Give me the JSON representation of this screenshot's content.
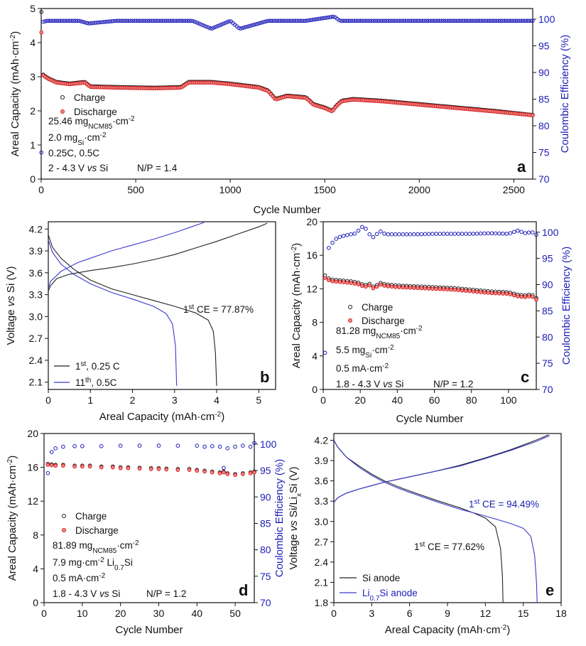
{
  "colors": {
    "charge": "#1a1a1a",
    "discharge": "#d42020",
    "ce": "#1c1cb8",
    "curve_black": "#222222",
    "curve_blue": "#3a3acc"
  },
  "chart_data": [
    {
      "id": "a",
      "type": "scatter",
      "panel_letter": "a",
      "xlabel": "Cycle Number",
      "ylabel": "Areal Capacity (mAh·cm⁻²)",
      "ylabel_right": "Coulombic Efficiency (%)",
      "xlim": [
        0,
        2600
      ],
      "ylim": [
        0,
        5
      ],
      "ylim_right": [
        70,
        102
      ],
      "xticks": [
        "0",
        "500",
        "1000",
        "1500",
        "2000",
        "2500"
      ],
      "yticks": [
        "0",
        "1",
        "2",
        "3",
        "4",
        "5"
      ],
      "yticks_right": [
        "70",
        "75",
        "80",
        "85",
        "90",
        "95",
        "100"
      ],
      "legend": [
        "Charge",
        "Discharge"
      ],
      "notes": [
        "25.46 mgNCM85·cm⁻²",
        "2.0 mgSi·cm⁻²",
        "0.25C, 0.5C",
        "2 - 4.3 V vs Si",
        "N/P = 1.4"
      ],
      "series": [
        {
          "name": "Charge",
          "axis": "left",
          "x": [
            1,
            2,
            3,
            5,
            8,
            12,
            20,
            40,
            80,
            150,
            230,
            260,
            400,
            600,
            740,
            780,
            900,
            1000,
            1150,
            1200,
            1240,
            1300,
            1400,
            1440,
            1500,
            1540,
            1560,
            1590,
            1650,
            1800,
            2000,
            2200,
            2400,
            2600
          ],
          "y": [
            4.9,
            4.1,
            3.6,
            3.2,
            3.1,
            3.05,
            3.02,
            2.95,
            2.85,
            2.8,
            2.85,
            2.72,
            2.7,
            2.68,
            2.7,
            2.85,
            2.85,
            2.8,
            2.7,
            2.6,
            2.35,
            2.45,
            2.4,
            2.2,
            2.1,
            2.0,
            2.15,
            2.3,
            2.35,
            2.3,
            2.2,
            2.1,
            2.0,
            1.88
          ]
        },
        {
          "name": "Discharge",
          "axis": "left",
          "x": [
            1,
            2,
            3,
            5,
            8,
            12,
            20,
            40,
            80,
            150,
            230,
            260,
            400,
            600,
            740,
            780,
            900,
            1000,
            1150,
            1200,
            1240,
            1300,
            1400,
            1440,
            1500,
            1540,
            1560,
            1590,
            1650,
            1800,
            2000,
            2200,
            2400,
            2600
          ],
          "y": [
            4.3,
            3.9,
            3.5,
            3.15,
            3.08,
            3.03,
            3.0,
            2.93,
            2.83,
            2.78,
            2.83,
            2.7,
            2.68,
            2.66,
            2.68,
            2.83,
            2.83,
            2.78,
            2.68,
            2.58,
            2.33,
            2.43,
            2.38,
            2.18,
            2.08,
            1.98,
            2.13,
            2.28,
            2.33,
            2.28,
            2.18,
            2.08,
            1.98,
            1.87
          ]
        },
        {
          "name": "CE",
          "axis": "right",
          "x": [
            1,
            2,
            3,
            4,
            5,
            6,
            8,
            10,
            15,
            20,
            30,
            60,
            100,
            200,
            250,
            400,
            600,
            800,
            900,
            1000,
            1050,
            1200,
            1400,
            1550,
            1580,
            1800,
            2000,
            2200,
            2400,
            2600
          ],
          "y": [
            75,
            88,
            92,
            97,
            98,
            99,
            99.3,
            99.5,
            99.6,
            99.6,
            99.7,
            99.7,
            99.7,
            99.7,
            99.2,
            99.7,
            99.7,
            99.7,
            98.2,
            99.7,
            98.2,
            99.7,
            99.7,
            100.5,
            99.7,
            99.7,
            99.7,
            99.7,
            99.7,
            99.7
          ]
        }
      ]
    },
    {
      "id": "b",
      "type": "line",
      "panel_letter": "b",
      "xlabel": "Areal Capacity (mAh·cm⁻²)",
      "ylabel": "Voltage vs Si (V)",
      "xlim": [
        0,
        5.4
      ],
      "ylim": [
        2.0,
        4.3
      ],
      "xticks": [
        "0",
        "1",
        "2",
        "3",
        "4",
        "5"
      ],
      "yticks": [
        "2.1",
        "2.4",
        "2.7",
        "3.0",
        "3.3",
        "3.6",
        "3.9",
        "4.2"
      ],
      "annotation": "1st CE = 77.87%",
      "legend": [
        "1st, 0.25 C",
        "11th, 0.5C"
      ],
      "series": [
        {
          "name": "1st, 0.25 C charge",
          "x": [
            0,
            0.05,
            0.2,
            0.5,
            1,
            1.5,
            2,
            2.5,
            3,
            3.5,
            4,
            4.5,
            5.0,
            5.2
          ],
          "y": [
            3.35,
            3.42,
            3.52,
            3.58,
            3.63,
            3.67,
            3.72,
            3.78,
            3.85,
            3.94,
            4.03,
            4.13,
            4.23,
            4.28
          ]
        },
        {
          "name": "1st, 0.25 C discharge",
          "x": [
            0,
            0.1,
            0.3,
            0.6,
            1,
            1.5,
            2,
            2.5,
            3,
            3.5,
            3.8,
            3.92,
            3.97,
            4.0
          ],
          "y": [
            4.12,
            3.95,
            3.8,
            3.65,
            3.5,
            3.38,
            3.3,
            3.22,
            3.14,
            3.05,
            2.95,
            2.8,
            2.5,
            2.05
          ]
        },
        {
          "name": "11th, 0.5C charge",
          "x": [
            0,
            0.05,
            0.3,
            0.7,
            1,
            1.5,
            2,
            2.5,
            3,
            3.4,
            3.7
          ],
          "y": [
            3.38,
            3.48,
            3.62,
            3.74,
            3.8,
            3.9,
            3.98,
            4.06,
            4.15,
            4.23,
            4.29
          ]
        },
        {
          "name": "11th, 0.5C discharge",
          "x": [
            0,
            0.1,
            0.3,
            0.6,
            1,
            1.5,
            2,
            2.5,
            2.8,
            2.95,
            3.02,
            3.05
          ],
          "y": [
            4.05,
            3.88,
            3.72,
            3.58,
            3.45,
            3.33,
            3.24,
            3.14,
            3.04,
            2.9,
            2.6,
            2.05
          ]
        }
      ]
    },
    {
      "id": "c",
      "type": "scatter",
      "panel_letter": "c",
      "xlabel": "Cycle Number",
      "ylabel": "Areal Capacity (mAh·cm⁻²)",
      "ylabel_right": "Coulombic Efficiency (%)",
      "xlim": [
        0,
        115
      ],
      "ylim": [
        0,
        20
      ],
      "ylim_right": [
        70,
        102
      ],
      "xticks": [
        "0",
        "20",
        "40",
        "60",
        "80",
        "100"
      ],
      "yticks": [
        "0",
        "4",
        "8",
        "12",
        "16",
        "20"
      ],
      "yticks_right": [
        "70",
        "75",
        "80",
        "85",
        "90",
        "95",
        "100"
      ],
      "legend": [
        "Charge",
        "Discharge"
      ],
      "notes": [
        "81.28 mgNCM85·cm⁻²",
        "5.5 mgSi·cm⁻²",
        "0.5 mA·cm⁻²",
        "1.8 - 4.3 V vs Si",
        "N/P = 1.2"
      ],
      "series": [
        {
          "name": "Charge",
          "axis": "left",
          "x": [
            1,
            2,
            5,
            10,
            15,
            20,
            22,
            25,
            28,
            30,
            32,
            35,
            40,
            50,
            60,
            70,
            80,
            90,
            100,
            105,
            110,
            112,
            115
          ],
          "y": [
            13.6,
            13.3,
            13.1,
            13.0,
            12.9,
            12.7,
            12.4,
            12.6,
            12.1,
            12.8,
            12.6,
            12.5,
            12.4,
            12.3,
            12.2,
            12.1,
            11.9,
            11.7,
            11.6,
            11.3,
            11.2,
            11.4,
            10.9
          ]
        },
        {
          "name": "Discharge",
          "axis": "left",
          "x": [
            1,
            2,
            5,
            10,
            15,
            20,
            22,
            25,
            28,
            30,
            32,
            35,
            40,
            50,
            60,
            70,
            80,
            90,
            100,
            105,
            110,
            112,
            115
          ],
          "y": [
            13.3,
            13.1,
            12.9,
            12.8,
            12.7,
            12.5,
            12.2,
            12.4,
            11.9,
            12.6,
            12.4,
            12.3,
            12.2,
            12.1,
            12.0,
            11.9,
            11.7,
            11.5,
            11.4,
            11.1,
            11.0,
            11.2,
            10.7
          ]
        },
        {
          "name": "CE",
          "axis": "right",
          "x": [
            1,
            2,
            3,
            4,
            5,
            6,
            8,
            10,
            12,
            15,
            18,
            20,
            22,
            25,
            28,
            30,
            32,
            35,
            40,
            50,
            60,
            70,
            80,
            90,
            100,
            105,
            110,
            112,
            115
          ],
          "y": [
            77,
            96,
            97,
            97.5,
            98,
            98.5,
            99,
            99.2,
            99.4,
            99.6,
            99.8,
            100.8,
            101.2,
            99.6,
            98.8,
            100.5,
            99.8,
            99.6,
            99.6,
            99.6,
            99.7,
            99.7,
            99.7,
            99.8,
            99.7,
            100.3,
            99.7,
            100.2,
            99.5
          ]
        }
      ]
    },
    {
      "id": "d",
      "type": "scatter",
      "panel_letter": "d",
      "xlabel": "Cycle Number",
      "ylabel": "Areal Capacity (mAh·cm⁻²)",
      "ylabel_right": "Coulombic Efficiency (%)",
      "xlim": [
        0,
        55
      ],
      "ylim": [
        0,
        20
      ],
      "ylim_right": [
        70,
        102
      ],
      "xticks": [
        "0",
        "10",
        "20",
        "30",
        "40",
        "50"
      ],
      "yticks": [
        "0",
        "4",
        "8",
        "12",
        "16",
        "20"
      ],
      "yticks_right": [
        "70",
        "75",
        "80",
        "85",
        "90",
        "95",
        "100"
      ],
      "legend": [
        "Charge",
        "Discharge"
      ],
      "notes": [
        "81.89 mgNCM85·cm⁻²",
        "7.9 mg·cm⁻² Li0.7Si",
        "0.5 mA·cm⁻²",
        "1.8 - 4.3 V vs Si",
        "N/P = 1.2"
      ],
      "series": [
        {
          "name": "Charge",
          "axis": "left",
          "x": [
            1,
            2,
            3,
            5,
            8,
            10,
            12,
            15,
            18,
            20,
            22,
            25,
            28,
            30,
            32,
            35,
            38,
            40,
            42,
            44,
            46,
            47,
            48,
            50,
            52,
            54,
            55
          ],
          "y": [
            16.4,
            16.35,
            16.3,
            16.3,
            16.2,
            16.2,
            16.2,
            16.1,
            16.1,
            16.0,
            16.0,
            15.95,
            15.9,
            15.9,
            15.85,
            15.8,
            15.8,
            15.7,
            15.6,
            15.5,
            15.4,
            15.5,
            15.3,
            15.2,
            15.3,
            15.4,
            15.5
          ]
        },
        {
          "name": "Discharge",
          "axis": "left",
          "x": [
            1,
            2,
            3,
            5,
            8,
            10,
            12,
            15,
            18,
            20,
            22,
            25,
            28,
            30,
            32,
            35,
            38,
            40,
            42,
            44,
            46,
            47,
            48,
            50,
            52,
            54,
            55
          ],
          "y": [
            16.3,
            16.25,
            16.2,
            16.2,
            16.1,
            16.1,
            16.1,
            16.0,
            16.0,
            15.9,
            15.9,
            15.85,
            15.8,
            15.8,
            15.75,
            15.7,
            15.7,
            15.6,
            15.5,
            15.4,
            15.3,
            15.4,
            15.2,
            15.1,
            15.2,
            15.3,
            15.4
          ]
        },
        {
          "name": "CE",
          "axis": "right",
          "x": [
            1,
            2,
            3,
            5,
            8,
            10,
            15,
            20,
            25,
            30,
            35,
            40,
            42,
            44,
            46,
            47,
            48,
            50,
            52,
            54,
            55
          ],
          "y": [
            94.5,
            98.5,
            99.2,
            99.5,
            99.6,
            99.6,
            99.6,
            99.7,
            99.7,
            99.7,
            99.7,
            99.7,
            99.5,
            99.6,
            99.5,
            95.5,
            99.2,
            99.5,
            99.7,
            99.5,
            100.2
          ]
        }
      ]
    },
    {
      "id": "e",
      "type": "line",
      "panel_letter": "e",
      "xlabel": "Areal Capacity (mAh·cm⁻²)",
      "ylabel": "Voltage vs Si/LixSi (V)",
      "xlim": [
        0,
        18
      ],
      "ylim": [
        1.8,
        4.3
      ],
      "xticks": [
        "0",
        "3",
        "6",
        "9",
        "12",
        "15",
        "18"
      ],
      "yticks": [
        "1.8",
        "2.1",
        "2.4",
        "2.7",
        "3.0",
        "3.3",
        "3.6",
        "3.9",
        "4.2"
      ],
      "annotation_blue": "1st CE = 94.49%",
      "annotation_black": "1st CE = 77.62%",
      "legend": [
        "Si anode",
        "Li0.7Si anode"
      ],
      "series": [
        {
          "name": "Si anode charge",
          "x": [
            0,
            0.3,
            1,
            2,
            3,
            4,
            5,
            6,
            8,
            10,
            12,
            14,
            16,
            17
          ],
          "y": [
            3.28,
            3.35,
            3.42,
            3.48,
            3.53,
            3.58,
            3.62,
            3.66,
            3.74,
            3.83,
            3.94,
            4.06,
            4.2,
            4.28
          ]
        },
        {
          "name": "Si anode discharge",
          "x": [
            0,
            0.3,
            1,
            2,
            3,
            4,
            5,
            6,
            8,
            10,
            11,
            12,
            12.8,
            13.2,
            13.35,
            13.4
          ],
          "y": [
            4.2,
            4.1,
            3.95,
            3.82,
            3.7,
            3.6,
            3.52,
            3.45,
            3.32,
            3.2,
            3.13,
            3.05,
            2.92,
            2.6,
            2.2,
            1.8
          ]
        },
        {
          "name": "Li0.7Si anode charge",
          "x": [
            0,
            0.3,
            1,
            2,
            3,
            4,
            5,
            6,
            8,
            10,
            12,
            14,
            16,
            17.1
          ],
          "y": [
            3.28,
            3.35,
            3.42,
            3.48,
            3.53,
            3.58,
            3.62,
            3.66,
            3.74,
            3.82,
            3.93,
            4.05,
            4.18,
            4.27
          ]
        },
        {
          "name": "Li0.7Si anode discharge",
          "x": [
            0,
            0.3,
            1,
            2,
            3,
            4,
            5,
            6,
            8,
            10,
            12,
            14,
            15,
            15.6,
            15.9,
            16.05,
            16.1
          ],
          "y": [
            4.2,
            4.1,
            3.95,
            3.8,
            3.68,
            3.58,
            3.5,
            3.43,
            3.3,
            3.18,
            3.08,
            2.97,
            2.9,
            2.78,
            2.5,
            2.1,
            1.8
          ]
        }
      ]
    }
  ]
}
